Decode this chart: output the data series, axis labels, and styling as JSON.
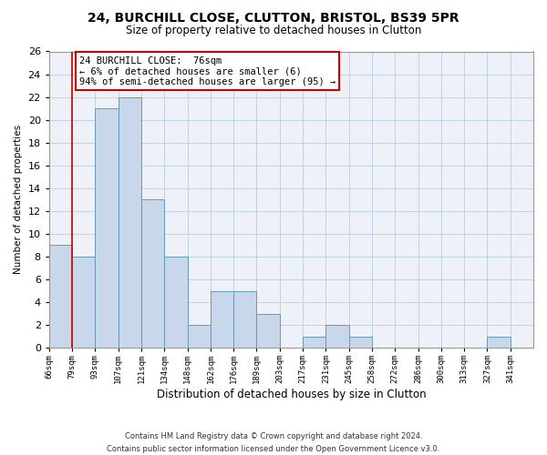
{
  "title": "24, BURCHILL CLOSE, CLUTTON, BRISTOL, BS39 5PR",
  "subtitle": "Size of property relative to detached houses in Clutton",
  "xlabel": "Distribution of detached houses by size in Clutton",
  "ylabel": "Number of detached properties",
  "bar_color": "#c8d8ea",
  "bar_edge_color": "#6699bb",
  "bin_labels": [
    "66sqm",
    "79sqm",
    "93sqm",
    "107sqm",
    "121sqm",
    "134sqm",
    "148sqm",
    "162sqm",
    "176sqm",
    "189sqm",
    "203sqm",
    "217sqm",
    "231sqm",
    "245sqm",
    "258sqm",
    "272sqm",
    "286sqm",
    "300sqm",
    "313sqm",
    "327sqm",
    "341sqm"
  ],
  "bar_heights": [
    9,
    8,
    21,
    22,
    13,
    8,
    2,
    5,
    5,
    3,
    0,
    1,
    2,
    1,
    0,
    0,
    0,
    0,
    0,
    1,
    0
  ],
  "ylim": [
    0,
    26
  ],
  "yticks": [
    0,
    2,
    4,
    6,
    8,
    10,
    12,
    14,
    16,
    18,
    20,
    22,
    24,
    26
  ],
  "property_line_x": 1.0,
  "annotation_title": "24 BURCHILL CLOSE:  76sqm",
  "annotation_line1": "← 6% of detached houses are smaller (6)",
  "annotation_line2": "94% of semi-detached houses are larger (95) →",
  "footer_line1": "Contains HM Land Registry data © Crown copyright and database right 2024.",
  "footer_line2": "Contains public sector information licensed under the Open Government Licence v3.0.",
  "grid_color": "#b8cfe0",
  "bg_color": "#eef2f8",
  "annotation_box_color": "#ffffff",
  "annotation_box_edge": "#cc0000",
  "property_line_color": "#cc0000"
}
